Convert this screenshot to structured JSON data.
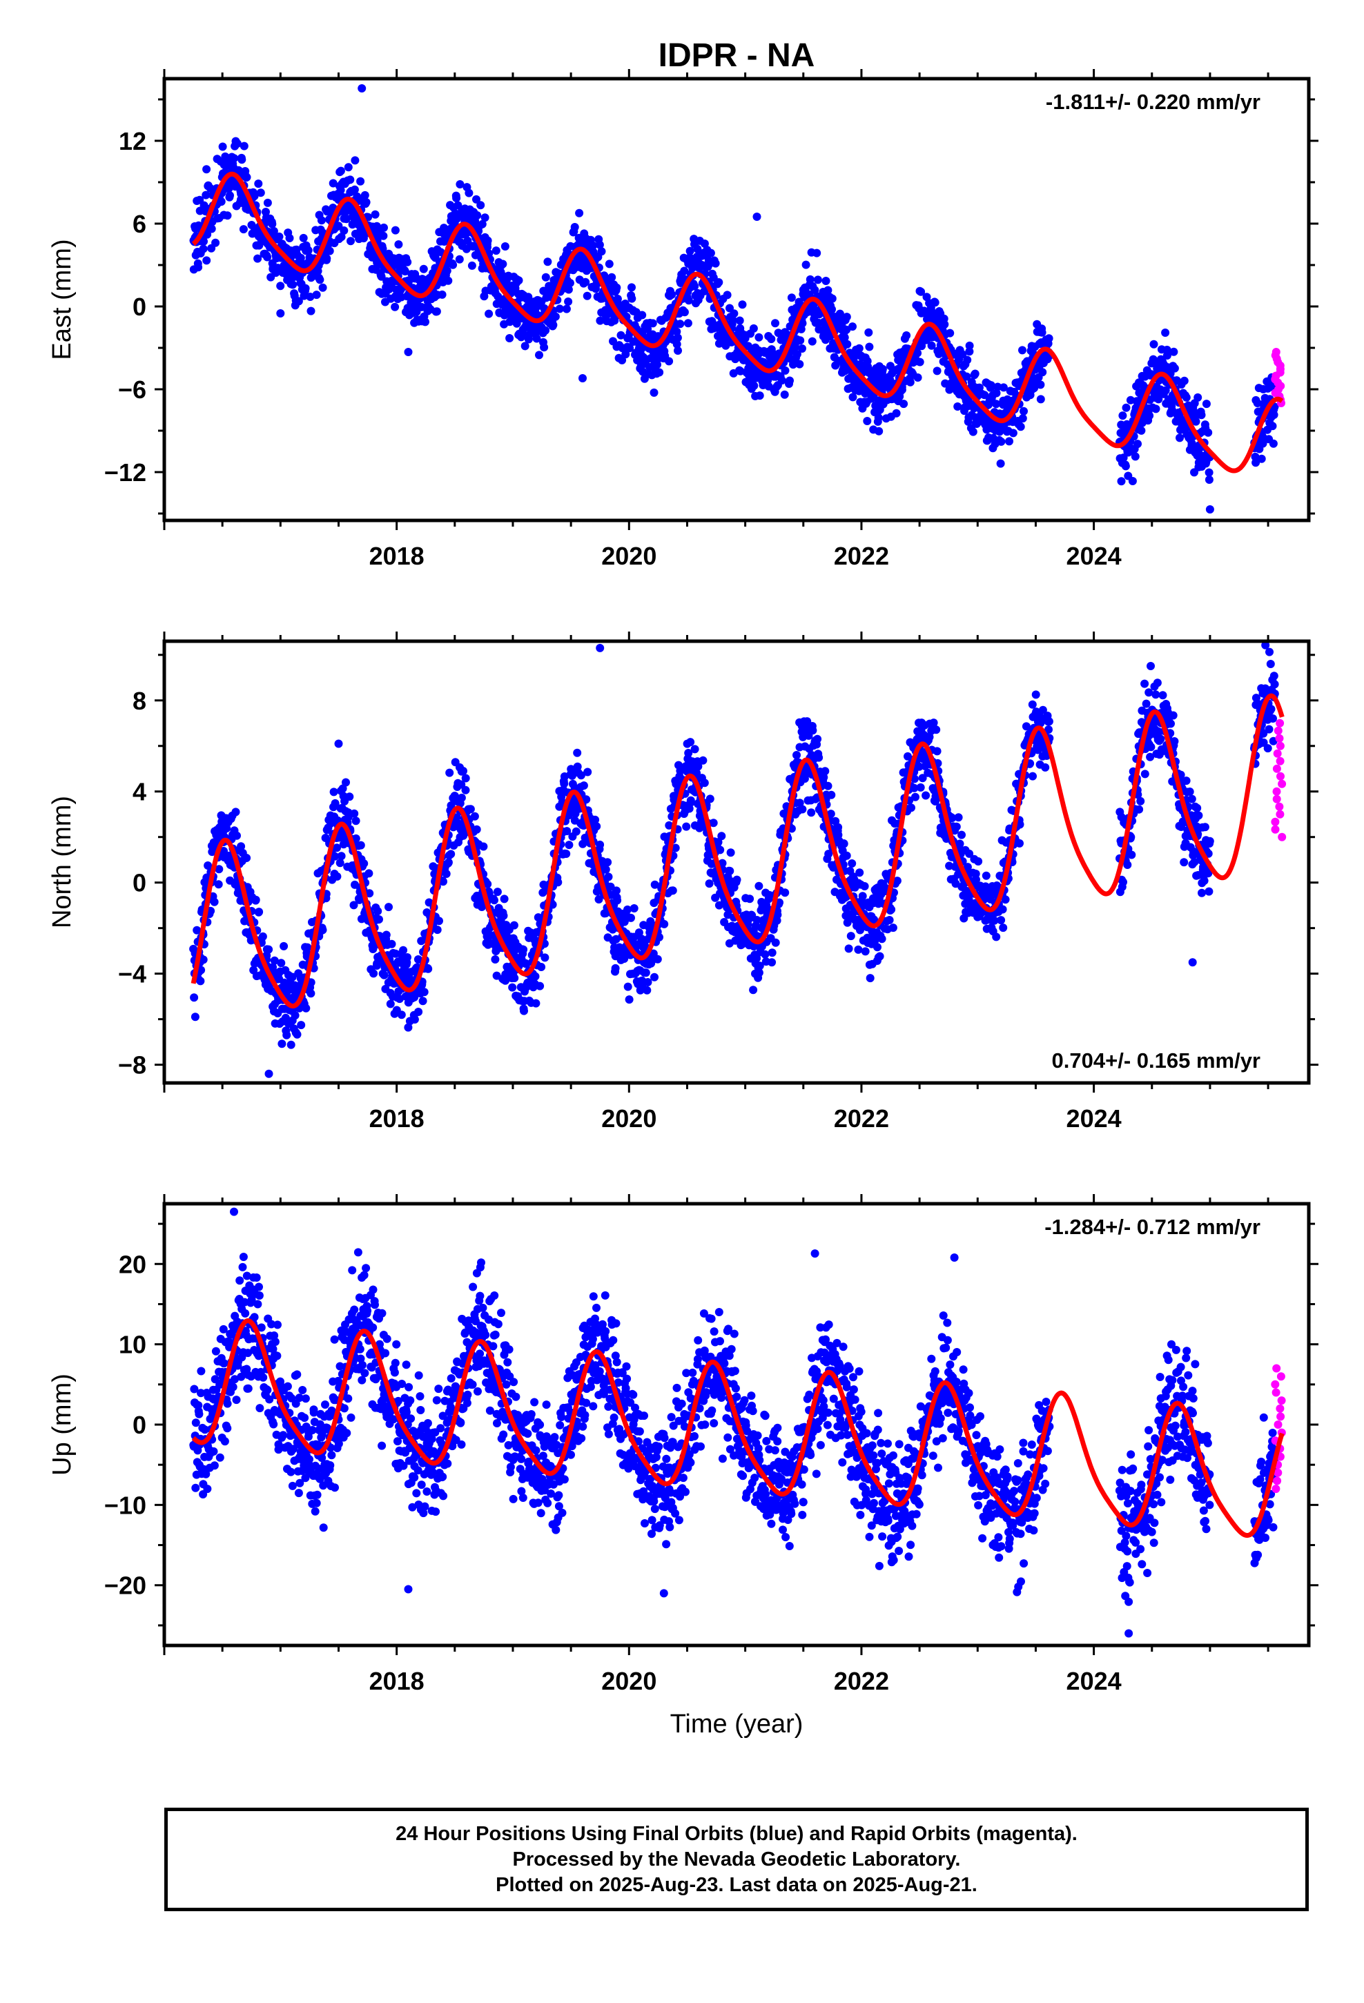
{
  "title": "IDPR - NA",
  "xlabel": "Time (year)",
  "caption": {
    "line1": "24 Hour Positions Using Final Orbits (blue) and Rapid Orbits (magenta).",
    "line2": "Processed by the Nevada Geodetic Laboratory.",
    "line3": "Plotted on 2025-Aug-23. Last data on 2025-Aug-21."
  },
  "colors": {
    "final": "#0000ff",
    "rapid": "#ff00ff",
    "model": "#ff0000",
    "frame": "#000000"
  },
  "chart_data": [
    {
      "type": "scatter",
      "ylabel": "East (mm)",
      "rate_label": "-1.811+/- 0.220 mm/yr",
      "rate_position": "top-right",
      "xlim": [
        2016.0,
        2025.85
      ],
      "ylim": [
        -15.5,
        16.5
      ],
      "yticks": [
        12,
        6,
        0,
        -6,
        -12
      ],
      "ytick_labels": [
        "12",
        "6",
        "0",
        "−6",
        "−12"
      ],
      "xticks": [
        2018,
        2020,
        2022,
        2024
      ],
      "xtick_labels": [
        "2018",
        "2020",
        "2022",
        "2024"
      ],
      "series": [
        {
          "role": "final",
          "trend": {
            "t0": 2016.25,
            "y0": 6.9,
            "rate": -1.811
          },
          "annual": {
            "amp": 2.8,
            "peak": 2016.62
          },
          "scatter": 1.3,
          "x_ranges": [
            [
              2016.25,
              2023.62
            ],
            [
              2024.22,
              2025.0
            ],
            [
              2025.38,
              2025.56
            ]
          ],
          "outliers": [
            [
              2017.7,
              15.8
            ],
            [
              2025.0,
              -14.7
            ],
            [
              2017.0,
              -0.5
            ],
            [
              2021.1,
              6.5
            ],
            [
              2019.6,
              -5.2
            ],
            [
              2018.1,
              -3.3
            ]
          ]
        },
        {
          "role": "rapid",
          "x_range": [
            2025.56,
            2025.62
          ],
          "y_range": [
            -7.0,
            -3.3
          ]
        }
      ],
      "model": {
        "t0": 2016.25,
        "y0": 6.9,
        "rate": -1.811,
        "annual_amp": 2.8,
        "annual_peak": 2016.62,
        "semiannual_amp": 0.6
      }
    },
    {
      "type": "scatter",
      "ylabel": "North (mm)",
      "rate_label": "0.704+/- 0.165 mm/yr",
      "rate_position": "bottom-right",
      "xlim": [
        2016.0,
        2025.85
      ],
      "ylim": [
        -8.8,
        10.6
      ],
      "yticks": [
        8,
        4,
        0,
        -4,
        -8
      ],
      "ytick_labels": [
        "8",
        "4",
        "0",
        "−4",
        "−8"
      ],
      "xticks": [
        2018,
        2020,
        2022,
        2024
      ],
      "xtick_labels": [
        "2018",
        "2020",
        "2022",
        "2024"
      ],
      "series": [
        {
          "role": "final",
          "trend": {
            "t0": 2016.25,
            "y0": -2.6,
            "rate": 0.704
          },
          "annual": {
            "amp": 3.7,
            "peak": 2016.55
          },
          "scatter": 0.9,
          "x_ranges": [
            [
              2016.25,
              2023.62
            ],
            [
              2024.22,
              2025.0
            ],
            [
              2025.38,
              2025.56
            ]
          ],
          "outliers": [
            [
              2019.75,
              10.3
            ],
            [
              2016.9,
              -8.4
            ],
            [
              2024.85,
              -3.5
            ],
            [
              2017.5,
              6.1
            ]
          ]
        },
        {
          "role": "rapid",
          "x_range": [
            2025.56,
            2025.62
          ],
          "y_range": [
            2.0,
            7.0
          ]
        }
      ],
      "model": {
        "t0": 2016.25,
        "y0": -2.6,
        "rate": 0.704,
        "annual_amp": 3.7,
        "annual_peak": 2016.55,
        "semiannual_amp": 0.7
      }
    },
    {
      "type": "scatter",
      "ylabel": "Up (mm)",
      "rate_label": "-1.284+/- 0.712 mm/yr",
      "rate_position": "top-right",
      "xlim": [
        2016.0,
        2025.85
      ],
      "ylim": [
        -27.5,
        27.5
      ],
      "yticks": [
        20,
        10,
        0,
        -10,
        -20
      ],
      "ytick_labels": [
        "20",
        "10",
        "0",
        "−10",
        "−20"
      ],
      "xticks": [
        2018,
        2020,
        2022,
        2024
      ],
      "xtick_labels": [
        "2018",
        "2020",
        "2022",
        "2024"
      ],
      "series": [
        {
          "role": "final",
          "trend": {
            "t0": 2016.25,
            "y0": 4.8,
            "rate": -1.284
          },
          "annual": {
            "amp": 7.5,
            "peak": 2016.75
          },
          "scatter": 3.8,
          "x_ranges": [
            [
              2016.25,
              2023.62
            ],
            [
              2024.22,
              2025.0
            ],
            [
              2025.38,
              2025.56
            ]
          ],
          "outliers": [
            [
              2024.3,
              -26.0
            ],
            [
              2018.1,
              -20.5
            ],
            [
              2020.3,
              -21.0
            ],
            [
              2016.6,
              26.5
            ],
            [
              2022.8,
              20.8
            ],
            [
              2021.6,
              21.3
            ]
          ]
        },
        {
          "role": "rapid",
          "x_range": [
            2025.56,
            2025.62
          ],
          "y_range": [
            -8.0,
            7.0
          ]
        }
      ],
      "model": {
        "t0": 2016.25,
        "y0": 4.8,
        "rate": -1.284,
        "annual_amp": 7.5,
        "annual_peak": 2016.75,
        "semiannual_amp": 1.5
      }
    }
  ]
}
